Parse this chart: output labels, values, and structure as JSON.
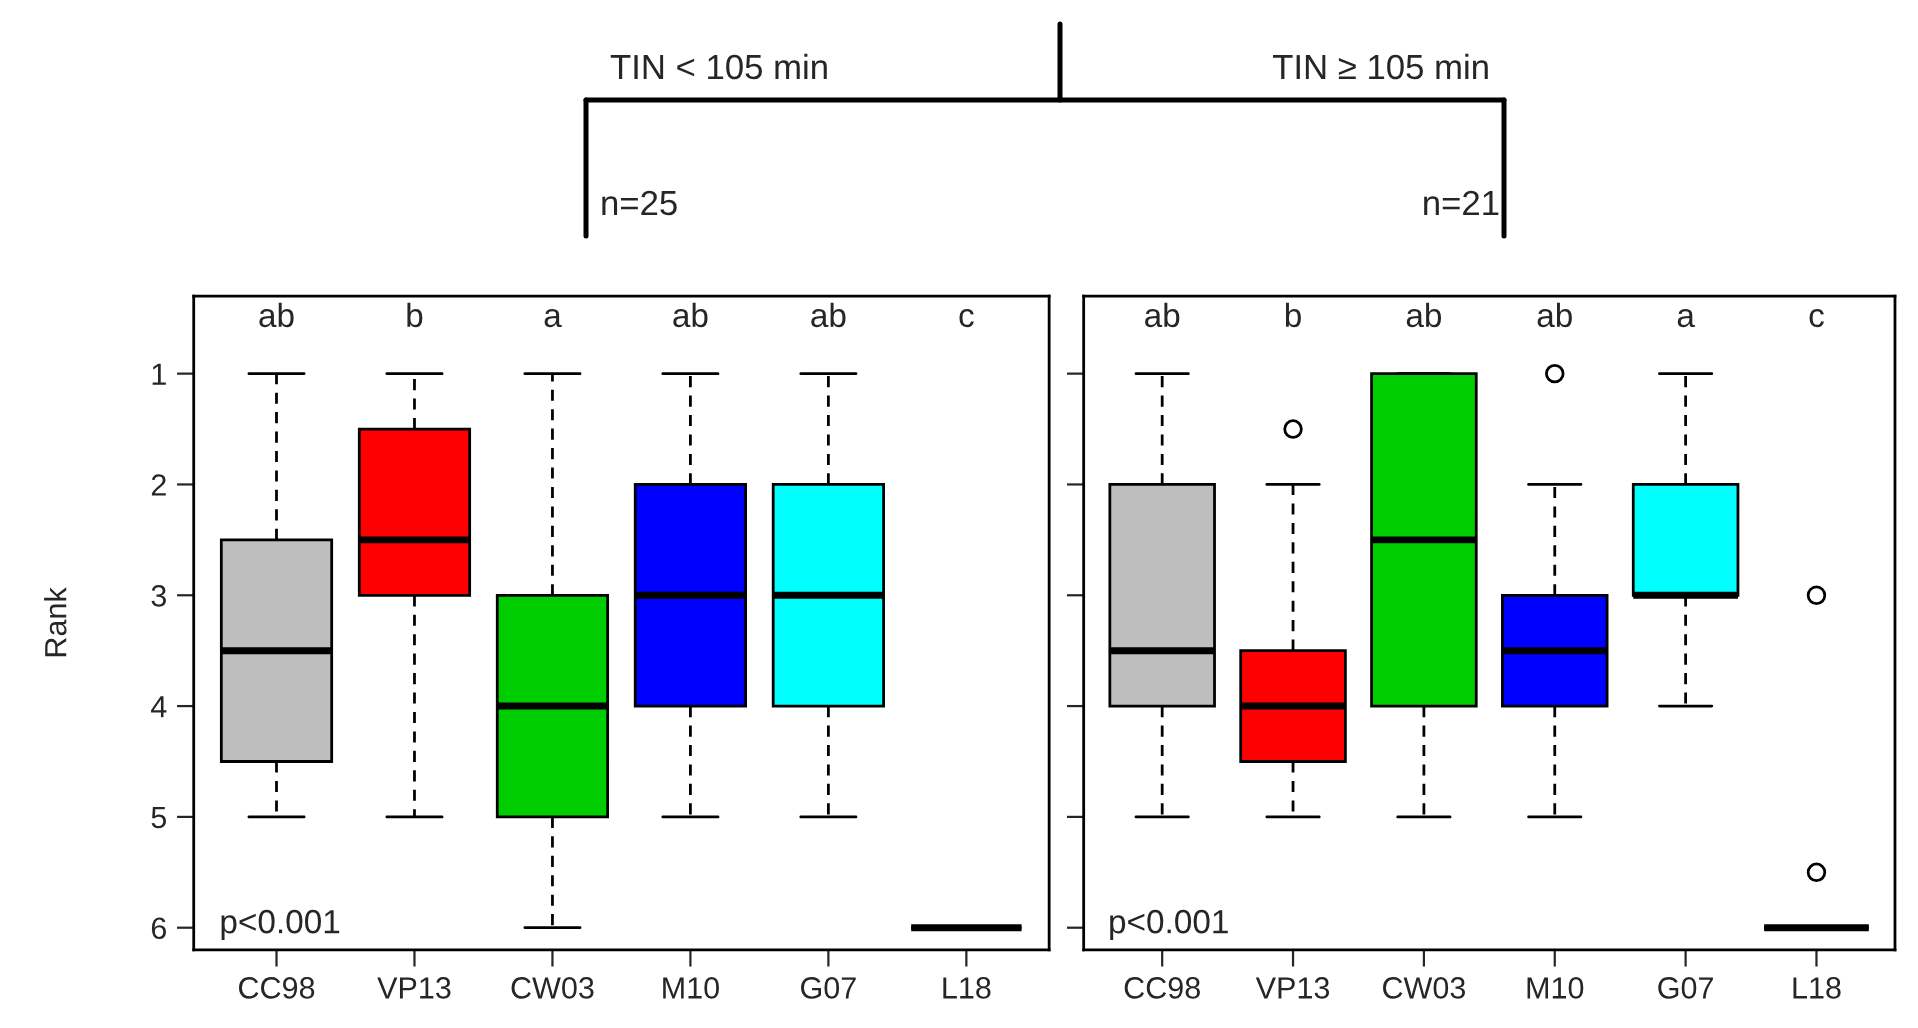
{
  "chart_data": [
    {
      "type": "box",
      "title": "TIN < 105 min",
      "subtitle": "n=25",
      "ylabel": "Rank",
      "categories": [
        "CC98",
        "VP13",
        "CW03",
        "M10",
        "G07",
        "L18"
      ],
      "colors": [
        "#bebebe",
        "#ff0000",
        "#00cd00",
        "#0000ff",
        "#00ffff",
        "#000000"
      ],
      "boxes": [
        {
          "low": 1,
          "q1": 2.5,
          "median": 3.5,
          "q3": 4.5,
          "high": 5
        },
        {
          "low": 1,
          "q1": 1.5,
          "median": 2.5,
          "q3": 3,
          "high": 5
        },
        {
          "low": 1,
          "q1": 3,
          "median": 4,
          "q3": 5,
          "high": 6
        },
        {
          "low": 1,
          "q1": 2,
          "median": 3,
          "q3": 4,
          "high": 5
        },
        {
          "low": 1,
          "q1": 2,
          "median": 3,
          "q3": 4,
          "high": 5
        },
        {
          "low": 6,
          "q1": 6,
          "median": 6,
          "q3": 6,
          "high": 6
        }
      ],
      "annotations": [
        "ab",
        "b",
        "a",
        "ab",
        "ab",
        "c",
        "p<0.001"
      ],
      "ylim": [
        6.2,
        0.3
      ],
      "yticks": [
        1,
        2,
        3,
        4,
        5,
        6
      ],
      "grid": false
    },
    {
      "type": "box",
      "title": "TIN ≥ 105 min",
      "subtitle": "n=21",
      "categories": [
        "CC98",
        "VP13",
        "CW03",
        "M10",
        "G07",
        "L18"
      ],
      "colors": [
        "#bebebe",
        "#ff0000",
        "#00cd00",
        "#0000ff",
        "#00ffff",
        "#000000"
      ],
      "boxes": [
        {
          "low": 1,
          "q1": 2,
          "median": 3.5,
          "q3": 4,
          "high": 5
        },
        {
          "low": 2,
          "q1": 3.5,
          "median": 4,
          "q3": 4.5,
          "high": 5,
          "outliers": [
            1.5
          ]
        },
        {
          "low": 1,
          "q1": 1,
          "median": 2.5,
          "q3": 4,
          "high": 5
        },
        {
          "low": 2,
          "q1": 3,
          "median": 3.5,
          "q3": 4,
          "high": 5,
          "outliers": [
            1
          ]
        },
        {
          "low": 1,
          "q1": 2,
          "median": 3,
          "q3": 3,
          "high": 4
        },
        {
          "low": 6,
          "q1": 6,
          "median": 6,
          "q3": 6,
          "high": 6,
          "outliers": [
            3,
            5.5
          ]
        }
      ],
      "annotations": [
        "ab",
        "b",
        "ab",
        "ab",
        "a",
        "c",
        "p<0.001"
      ],
      "ylim": [
        6.2,
        0.3
      ],
      "yticks": [
        1,
        2,
        3,
        4,
        5,
        6
      ],
      "tick_labels": "x",
      "grid": false
    }
  ]
}
